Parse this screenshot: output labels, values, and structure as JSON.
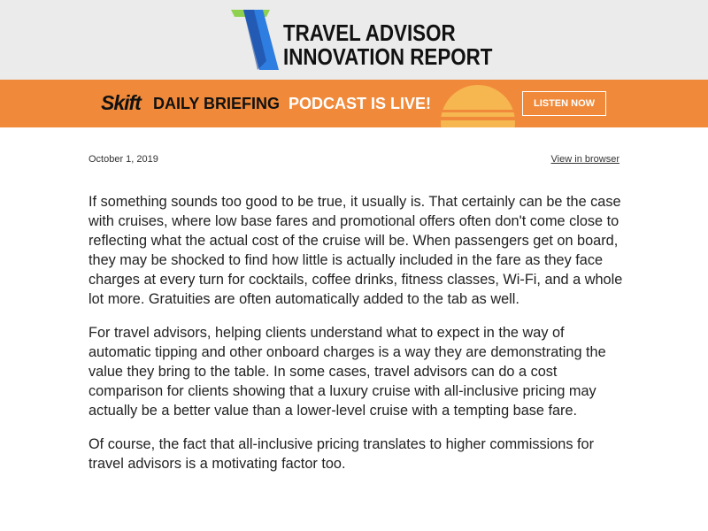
{
  "masthead": {
    "title_line1": "TRAVEL ADVISOR",
    "title_line2": "INNOVATION REPORT",
    "logo_colors": {
      "green": "#8fd14f",
      "blue": "#2e7de1",
      "dark_blue": "#1b3f8f"
    }
  },
  "banner": {
    "brand": "Skift",
    "daily": "DAILY BRIEFING",
    "podcast": "PODCAST IS LIVE!",
    "button_label": "LISTEN NOW",
    "bg_color": "#f08a3a"
  },
  "meta": {
    "date": "October 1, 2019",
    "browser_link": "View in browser"
  },
  "article": {
    "paragraphs": [
      "If something sounds too good to be true, it usually is. That certainly can be the case with cruises, where low base fares and promotional offers often don't come close to reflecting what the actual cost of the cruise will be. When passengers get on board, they may be shocked to find how little is actually included in the fare as they face charges at every turn for cocktails, coffee drinks, fitness classes, Wi-Fi, and a whole lot more. Gratuities are often automatically added to the tab as well.",
      "For travel advisors, helping clients understand what to expect in the way of automatic tipping and other onboard charges is a way they are demonstrating the value they bring to the table. In some cases, travel advisors can do a cost comparison for clients showing that a luxury cruise with all-inclusive pricing may actually be a better value than a lower-level cruise with a tempting base fare.",
      "Of course, the fact that all-inclusive pricing translates to higher commissions for travel advisors is a motivating factor too."
    ]
  }
}
